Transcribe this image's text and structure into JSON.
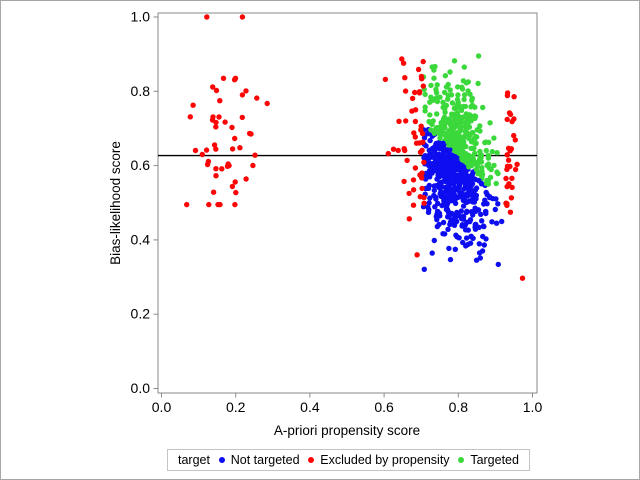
{
  "window": {
    "background": "#ffffff",
    "outer_border_color": "#a6a6a6"
  },
  "axes_style": {
    "frame_color": "#8a8a8a",
    "tick_color": "#8a8a8a",
    "text_color": "#000000",
    "plot_background": "#ffffff"
  },
  "chart_data": {
    "type": "scatter",
    "title": "",
    "xlabel": "A-priori propensity score",
    "ylabel": "Bias-likelihood score",
    "xlim": [
      0.0,
      1.0
    ],
    "ylim": [
      0.0,
      1.0
    ],
    "xticks": [
      0.0,
      0.2,
      0.4,
      0.6,
      0.8,
      1.0
    ],
    "yticks": [
      0.0,
      0.2,
      0.4,
      0.6,
      0.8,
      1.0
    ],
    "xtick_labels": [
      "0.0",
      "0.2",
      "0.4",
      "0.6",
      "0.8",
      "1.0"
    ],
    "ytick_labels": [
      "0.0",
      "0.2",
      "0.4",
      "0.6",
      "0.8",
      "1.0"
    ],
    "grid": false,
    "legend": {
      "title": "target",
      "position": "bottom"
    },
    "reference_line": {
      "y": 0.627,
      "color": "#000000"
    },
    "series": [
      {
        "name": "Not targeted",
        "color": "#0d0df0",
        "marker": "filled-circle"
      },
      {
        "name": "Excluded by propensity",
        "color": "#fb0505",
        "marker": "filled-circle"
      },
      {
        "name": "Targeted",
        "color": "#3bd83b",
        "marker": "filled-circle"
      }
    ],
    "point_generator": {
      "note": "approx 950 points estimated from pixels; clusters regenerated deterministically from this spec",
      "seed": 97531,
      "marker_radius": 2.7,
      "split_boundary": {
        "slope": -0.97,
        "intercept": 1.4,
        "series_above": 2,
        "series_below": 0
      },
      "clusters": [
        {
          "name": "main-targeting-cloud",
          "kind": "split",
          "n": 820,
          "cx": 0.788,
          "cy": 0.612,
          "sx": 0.046,
          "sy": 0.1,
          "tilt": -0.45,
          "xmin": 0.706,
          "xmax": 0.924,
          "ymin": 0.305,
          "ymax": 0.895
        },
        {
          "name": "excluded-left-band",
          "kind": "band",
          "n": 52,
          "edge": 0.708,
          "spread": 0.032,
          "side": -1,
          "cy": 0.645,
          "sy": 0.115,
          "xlimit": 0.594,
          "ymin": 0.34,
          "ymax": 0.9,
          "series": 1
        },
        {
          "name": "excluded-right-band",
          "kind": "band",
          "n": 30,
          "edge": 0.928,
          "spread": 0.02,
          "side": 1,
          "cy": 0.625,
          "sy": 0.105,
          "xlimit": 0.982,
          "ymin": 0.45,
          "ymax": 0.815,
          "series": 1
        },
        {
          "name": "excluded-far-left-cluster",
          "kind": "gauss",
          "n": 50,
          "cx": 0.175,
          "cy": 0.672,
          "sx": 0.052,
          "sy": 0.082,
          "xmin": 0.068,
          "xmax": 0.285,
          "ymin": 0.495,
          "ymax": 0.835,
          "series": 1
        }
      ],
      "extra_points": [
        {
          "series": 1,
          "points": [
            [
              0.122,
              1.0
            ],
            [
              0.218,
              1.0
            ],
            [
              0.973,
              0.297
            ]
          ]
        }
      ]
    }
  }
}
